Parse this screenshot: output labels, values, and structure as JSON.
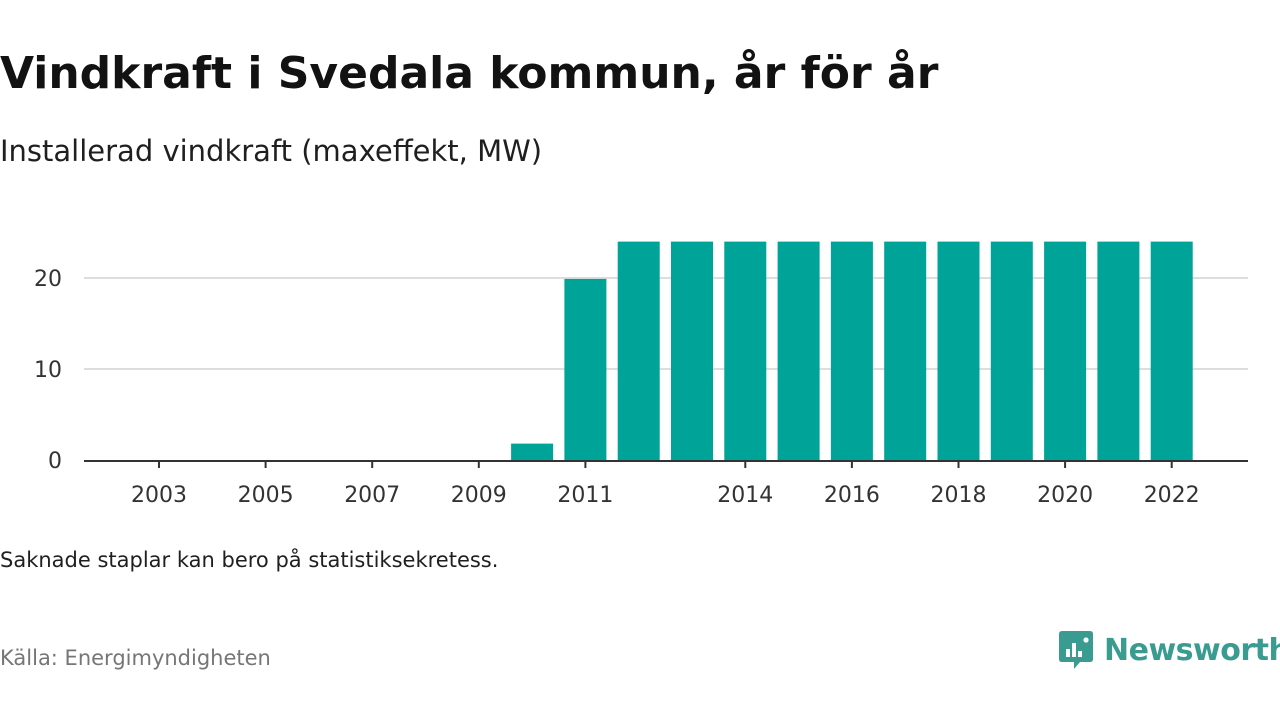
{
  "header": {
    "title": "Vindkraft i Svedala kommun, år för år",
    "subtitle": "Installerad vindkraft (maxeffekt, MW)"
  },
  "footer": {
    "note": "Saknade staplar kan bero på statistiksekretess.",
    "source": "Källa: Energimyndigheten",
    "brand": "Newsworthy",
    "brand_icon": "newsworthy-logo-icon"
  },
  "colors": {
    "bar": "#00a398",
    "grid": "#dddddd",
    "axis": "#333333",
    "brand": "#3a9c90"
  },
  "chart_data": {
    "type": "bar",
    "title": "Vindkraft i Svedala kommun, år för år",
    "subtitle": "Installerad vindkraft (maxeffekt, MW)",
    "categories": [
      "2003",
      "2004",
      "2005",
      "2006",
      "2007",
      "2008",
      "2009",
      "2010",
      "2011",
      "2012",
      "2013",
      "2014",
      "2015",
      "2016",
      "2017",
      "2018",
      "2019",
      "2020",
      "2021",
      "2022"
    ],
    "values": [
      0,
      0,
      0,
      0,
      0,
      0,
      0,
      1.8,
      19.9,
      24,
      24,
      24,
      24,
      24,
      24,
      24,
      24,
      24,
      24,
      24
    ],
    "x_tick_labels": [
      "2003",
      "2005",
      "2007",
      "2009",
      "2011",
      "2014",
      "2016",
      "2018",
      "2020",
      "2022"
    ],
    "y_ticks": [
      0,
      10,
      20
    ],
    "ylim": [
      0,
      26
    ],
    "xlabel": "",
    "ylabel": "",
    "grid": true,
    "legend": "none"
  }
}
